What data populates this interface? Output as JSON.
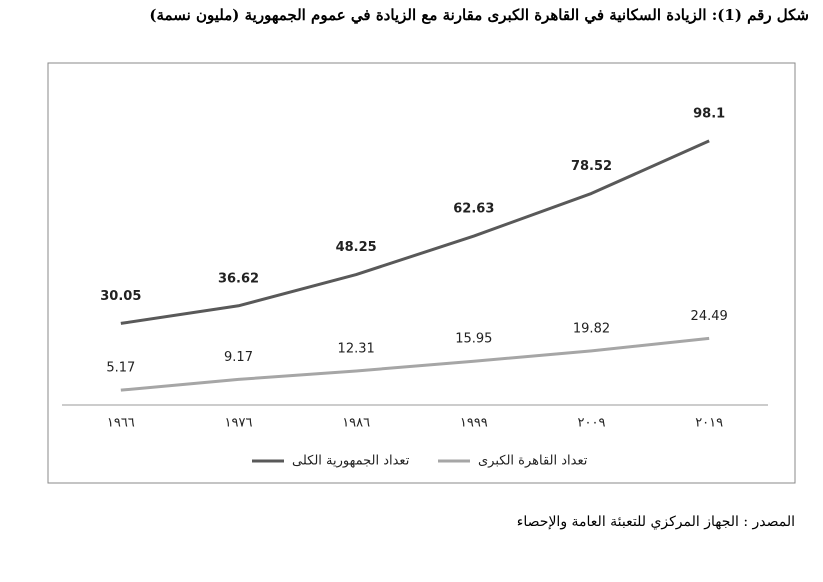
{
  "chart_data": {
    "type": "line",
    "title": "شكل رقم (1): الزيادة السكانية في القاهرة الكبرى مقارنة مع الزيادة في عموم الجمهورية (مليون نسمة)",
    "categories": [
      "١٩٦٦",
      "١٩٧٦",
      "١٩٨٦",
      "١٩٩٩",
      "٢٠٠٩",
      "٢٠١٩"
    ],
    "series": [
      {
        "name": "تعداد الجمهورية الكلى",
        "color": "#595959",
        "values": [
          30.05,
          36.62,
          48.25,
          62.63,
          78.52,
          98.1
        ]
      },
      {
        "name": "تعداد القاهرة الكبرى",
        "color": "#a6a6a6",
        "values": [
          5.17,
          9.17,
          12.31,
          15.95,
          19.82,
          24.49
        ]
      }
    ],
    "ylim": [
      0,
      110
    ],
    "source": "المصدر : الجهاز المركزي للتعبئة العامة والإحصاء"
  }
}
